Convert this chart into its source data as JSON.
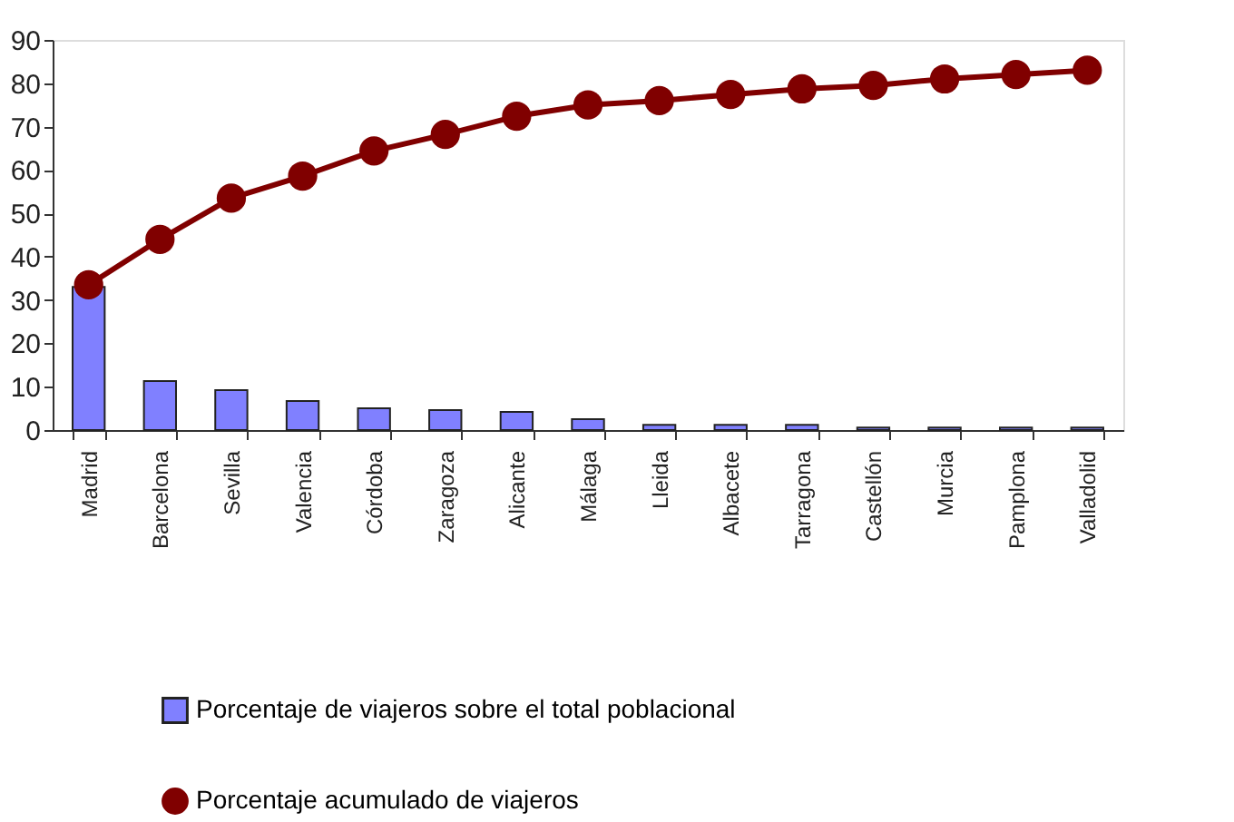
{
  "chart_data": {
    "type": "bar",
    "categories": [
      "Madrid",
      "Barcelona",
      "Sevilla",
      "Valencia",
      "Córdoba",
      "Zaragoza",
      "Alicante",
      "Málaga",
      "Lleida",
      "Albacete",
      "Tarragona",
      "Castellón",
      "Murcia",
      "Pamplona",
      "Valladolid"
    ],
    "series": [
      {
        "name": "Porcentaje de viajeros sobre el total poblacional",
        "color": "#8080ff",
        "values": [
          33,
          11.3,
          9.2,
          6.7,
          5,
          4.6,
          4.2,
          2.5,
          1.2,
          1.2,
          1.2,
          0.6,
          0.6,
          0.6,
          0.6
        ]
      },
      {
        "name": "Porcentaje acumulado de viajeros",
        "type": "line",
        "color": "#800000",
        "marker": "circle",
        "values": [
          33.5,
          44,
          53.5,
          58.6,
          64.4,
          68.2,
          72.4,
          75,
          76,
          77.4,
          78.7,
          79.5,
          81,
          82,
          83
        ]
      }
    ],
    "ylim": [
      0,
      90
    ],
    "yticks": [
      0,
      10,
      20,
      30,
      40,
      50,
      60,
      70,
      80,
      90
    ],
    "grid": false,
    "legend": "bottom"
  }
}
